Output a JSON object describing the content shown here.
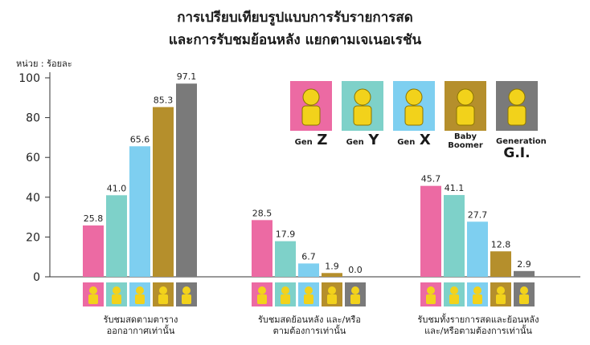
{
  "title_line1": "การเปรียบเทียบรูปแบบการรับรายการสด",
  "title_line2": "และการรับชมย้อนหลัง แยกตามเจเนอเรชัน",
  "unit_label": "หน่วย : ร้อยละ",
  "legend": [
    {
      "prefix": "Gen",
      "suffix": "Z",
      "color": "#ec6aa3"
    },
    {
      "prefix": "Gen",
      "suffix": "Y",
      "color": "#7ed1c9"
    },
    {
      "prefix": "Gen",
      "suffix": "X",
      "color": "#7ecff0"
    },
    {
      "line1": "Baby",
      "line2": "Boomer",
      "color": "#b58f2c"
    },
    {
      "line1": "Generation",
      "line2": "G.I.",
      "color": "#7a7a7a"
    }
  ],
  "category_labels": [
    {
      "line1": "รับชมสดตามตาราง",
      "line2": "ออกอากาศเท่านั้น"
    },
    {
      "line1": "รับชมสดย้อนหลัง และ/หรือ",
      "line2": "ตามต้องการเท่านั้น"
    },
    {
      "line1": "รับชมทั้งรายการสดและย้อนหลัง",
      "line2": "และ/หรือตามต้องการเท่านั้น"
    }
  ],
  "chart_data": {
    "type": "bar",
    "categories": [
      "รับชมสดตามตาราง ออกอากาศเท่านั้น",
      "รับชมสดย้อนหลัง และ/หรือ ตามต้องการเท่านั้น",
      "รับชมทั้งรายการสดและย้อนหลัง และ/หรือตามต้องการเท่านั้น"
    ],
    "series": [
      {
        "name": "Gen Z",
        "color": "#ec6aa3",
        "values": [
          25.8,
          28.5,
          45.7
        ]
      },
      {
        "name": "Gen Y",
        "color": "#7ed1c9",
        "values": [
          41.0,
          17.9,
          41.1
        ]
      },
      {
        "name": "Gen X",
        "color": "#7ecff0",
        "values": [
          65.6,
          6.7,
          27.7
        ]
      },
      {
        "name": "Baby Boomer",
        "color": "#b58f2c",
        "values": [
          85.3,
          1.9,
          12.8
        ]
      },
      {
        "name": "Generation G.I.",
        "color": "#7a7a7a",
        "values": [
          97.1,
          0.0,
          2.9
        ]
      }
    ],
    "value_labels": [
      [
        "25.8",
        "41.0",
        "65.6",
        "85.3",
        "97.1"
      ],
      [
        "28.5",
        "17.9",
        "6.7",
        "1.9",
        "0.0"
      ],
      [
        "45.7",
        "41.1",
        "27.7",
        "12.8",
        "2.9"
      ]
    ],
    "yticks": [
      "0",
      "20",
      "40",
      "60",
      "80",
      "100"
    ],
    "ylim": [
      0,
      100
    ],
    "ylabel": "หน่วย : ร้อยละ",
    "grid": false,
    "legend_position": "top-right"
  }
}
